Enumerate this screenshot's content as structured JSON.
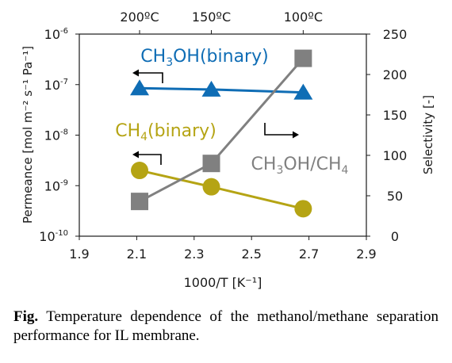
{
  "chart_data": {
    "type": "scatter",
    "x": {
      "label": "1000/T [K⁻¹]",
      "lim": [
        1.9,
        2.9
      ],
      "ticks": [
        "1.9",
        "2.1",
        "2.3",
        "2.5",
        "2.7",
        "2.9"
      ]
    },
    "y_left": {
      "label": "Permeance [mol m⁻² s⁻¹ Pa⁻¹]",
      "scale": "log",
      "lim": [
        1e-10,
        1e-06
      ],
      "ticks": [
        {
          "value": 1e-10,
          "base": "10",
          "exp": "-10"
        },
        {
          "value": 1e-09,
          "base": "10",
          "exp": "-9"
        },
        {
          "value": 1e-08,
          "base": "10",
          "exp": "-8"
        },
        {
          "value": 1e-07,
          "base": "10",
          "exp": "-7"
        },
        {
          "value": 1e-06,
          "base": "10",
          "exp": "-6"
        }
      ]
    },
    "y_right": {
      "label": "Selectivity [-]",
      "lim": [
        0,
        250
      ],
      "ticks": [
        "0",
        "50",
        "100",
        "150",
        "200",
        "250"
      ]
    },
    "top_axis_labels": [
      {
        "x": 2.11,
        "text": "200ºC"
      },
      {
        "x": 2.36,
        "text": "150ºC"
      },
      {
        "x": 2.68,
        "text": "100ºC"
      }
    ],
    "series": [
      {
        "name": "CH3OH(binary)",
        "axis": "left",
        "color": "#0f6db5",
        "marker": "triangle",
        "x": [
          2.11,
          2.36,
          2.68
        ],
        "y": [
          8.5e-08,
          8e-08,
          7e-08
        ]
      },
      {
        "name": "CH4(binary)",
        "axis": "left",
        "color": "#b5a414",
        "marker": "circle",
        "x": [
          2.11,
          2.36,
          2.68
        ],
        "y": [
          2e-09,
          9.5e-10,
          3.5e-10
        ]
      },
      {
        "name": "CH3OH/CH4",
        "axis": "right",
        "color": "#808080",
        "marker": "square",
        "x": [
          2.11,
          2.36,
          2.68
        ],
        "y": [
          43,
          90,
          220
        ]
      }
    ],
    "annotations": {
      "ch3oh": {
        "main": "CH",
        "sub1": "3",
        "rest": "OH(binary)"
      },
      "ch4": {
        "main": "CH",
        "sub1": "4",
        "rest": "(binary)"
      },
      "ratio": {
        "main": "CH",
        "sub1": "3",
        "mid": "OH/CH",
        "sub2": "4"
      }
    }
  },
  "caption": {
    "label": "Fig.",
    "text": " Temperature dependence of the methanol/methane separation performance for IL  membrane."
  }
}
